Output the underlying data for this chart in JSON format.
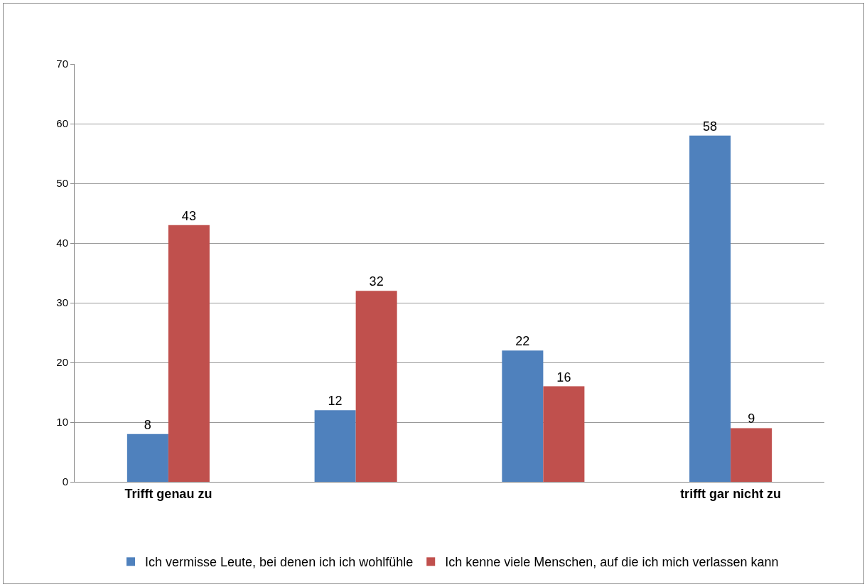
{
  "chart_data": {
    "type": "bar",
    "categories": [
      "Trifft genau zu",
      null,
      null,
      "trifft gar nicht zu"
    ],
    "series": [
      {
        "name": "Ich vermisse Leute, bei denen ich ich wohlfühle",
        "color": "#4f81bd",
        "values": [
          8,
          12,
          22,
          58
        ]
      },
      {
        "name": "Ich kenne viele Menschen, auf die ich mich verlassen kann",
        "color": "#c0504d",
        "values": [
          43,
          32,
          16,
          9
        ]
      }
    ],
    "ylim": [
      0,
      70
    ],
    "yticks": [
      0,
      10,
      20,
      30,
      40,
      50,
      60,
      70
    ],
    "grid": "y",
    "legend": "bottom",
    "data_labels": true
  }
}
